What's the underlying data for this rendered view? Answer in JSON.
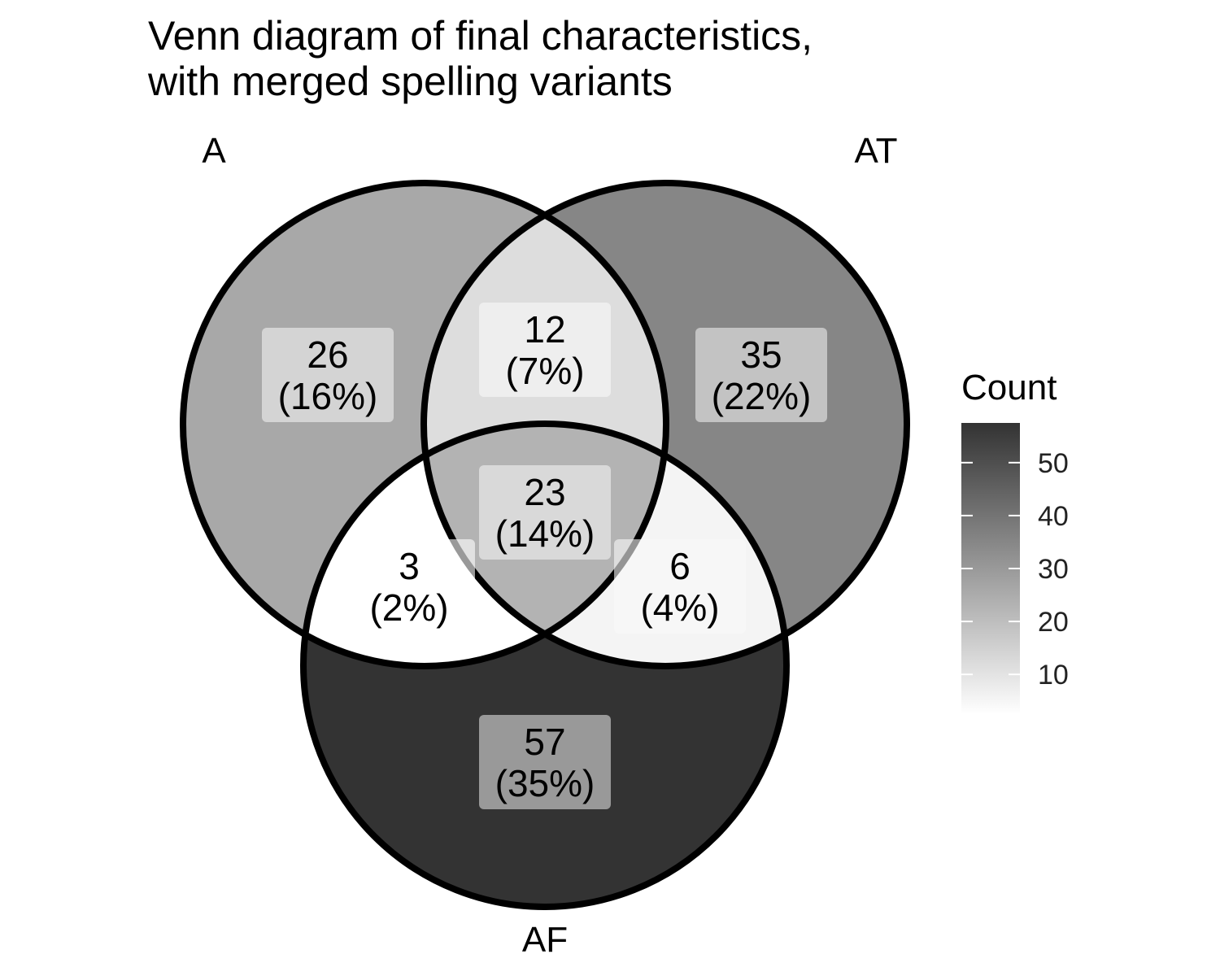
{
  "title": {
    "line1": "Venn diagram of final characteristics,",
    "line2": "with merged spelling variants"
  },
  "sets": [
    {
      "name": "A"
    },
    {
      "name": "AT"
    },
    {
      "name": "AF"
    }
  ],
  "regions": [
    {
      "key": "A_only",
      "count": "26",
      "percent": "(16%)",
      "value": 26
    },
    {
      "key": "A_AT",
      "count": "12",
      "percent": "(7%)",
      "value": 12
    },
    {
      "key": "AT_only",
      "count": "35",
      "percent": "(22%)",
      "value": 35
    },
    {
      "key": "A_AT_AF",
      "count": "23",
      "percent": "(14%)",
      "value": 23
    },
    {
      "key": "A_AF",
      "count": "3",
      "percent": "(2%)",
      "value": 3
    },
    {
      "key": "AT_AF",
      "count": "6",
      "percent": "(4%)",
      "value": 6
    },
    {
      "key": "AF_only",
      "count": "57",
      "percent": "(35%)",
      "value": 57
    }
  ],
  "legend": {
    "title": "Count",
    "min": 3,
    "max": 57,
    "ticks": [
      "50",
      "40",
      "30",
      "20",
      "10"
    ],
    "tick_values": [
      50,
      40,
      30,
      20,
      10
    ],
    "color_low": "#ffffff",
    "color_high": "#333333"
  },
  "outline_color": "#000000"
}
